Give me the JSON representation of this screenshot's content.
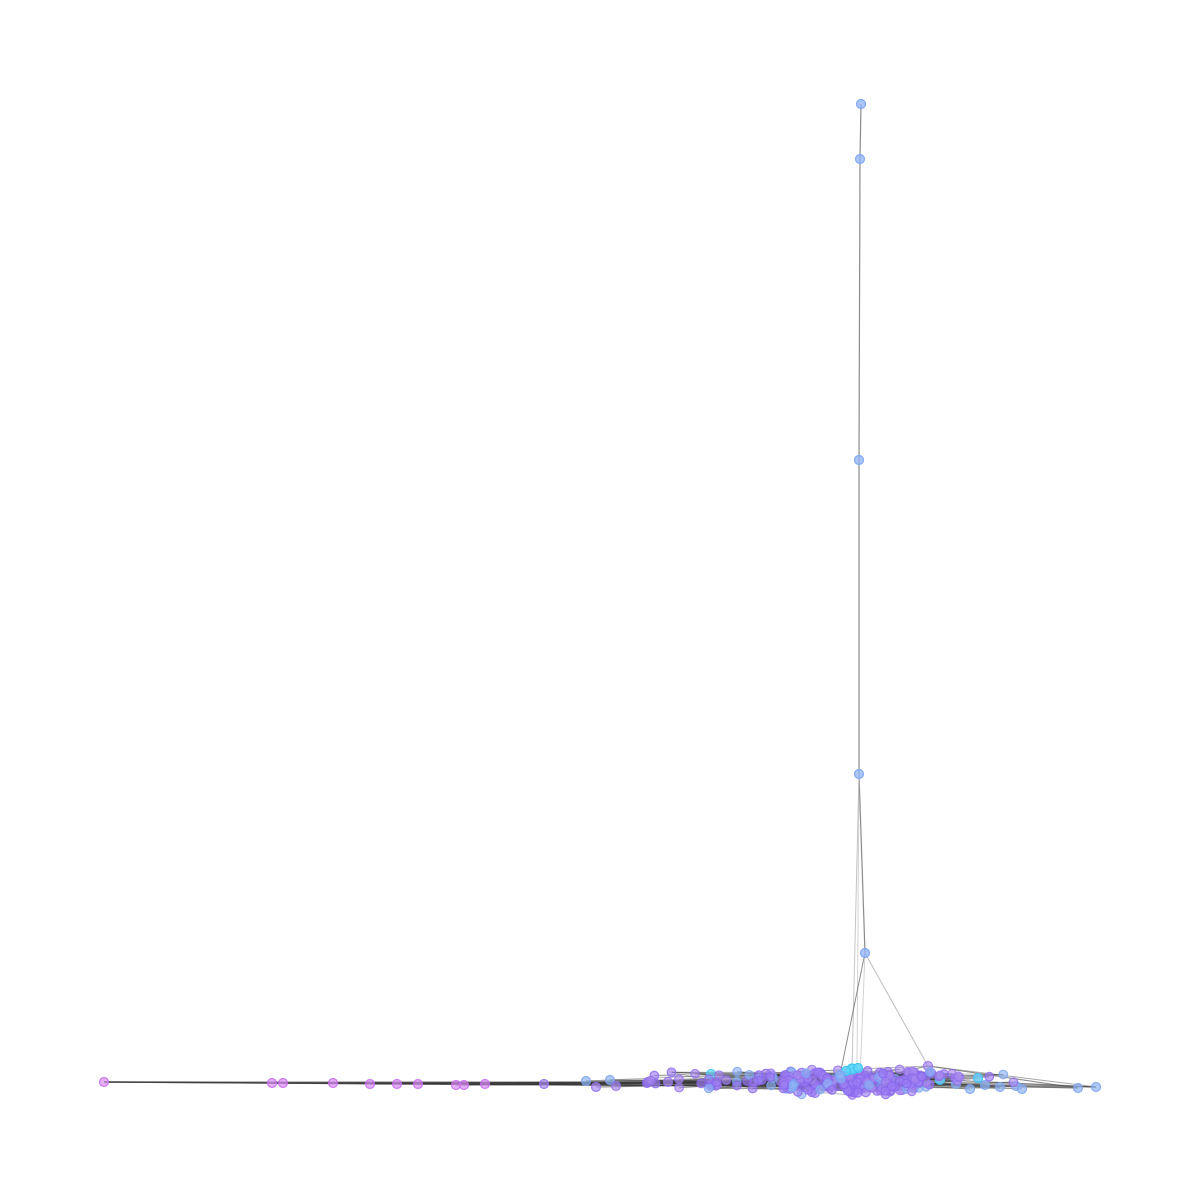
{
  "graph": {
    "node_colors": {
      "blue": "#8fb3f5",
      "blue_stroke": "#7aa3f0",
      "purple": "#9b7df2",
      "purple_stroke": "#8a66ee",
      "magenta": "#d98af5",
      "magenta_stroke": "#c768f0",
      "violet": "#a98aef",
      "violet_stroke": "#9470ea",
      "cyan": "#5fd4f5",
      "cyan_stroke": "#3fc8f0"
    },
    "edge_colors": {
      "dark": "#3a3a3a",
      "mid": "#6e6e6e",
      "light": "#b5b5b5"
    },
    "background": "#ffffff",
    "labels_shown": false
  }
}
